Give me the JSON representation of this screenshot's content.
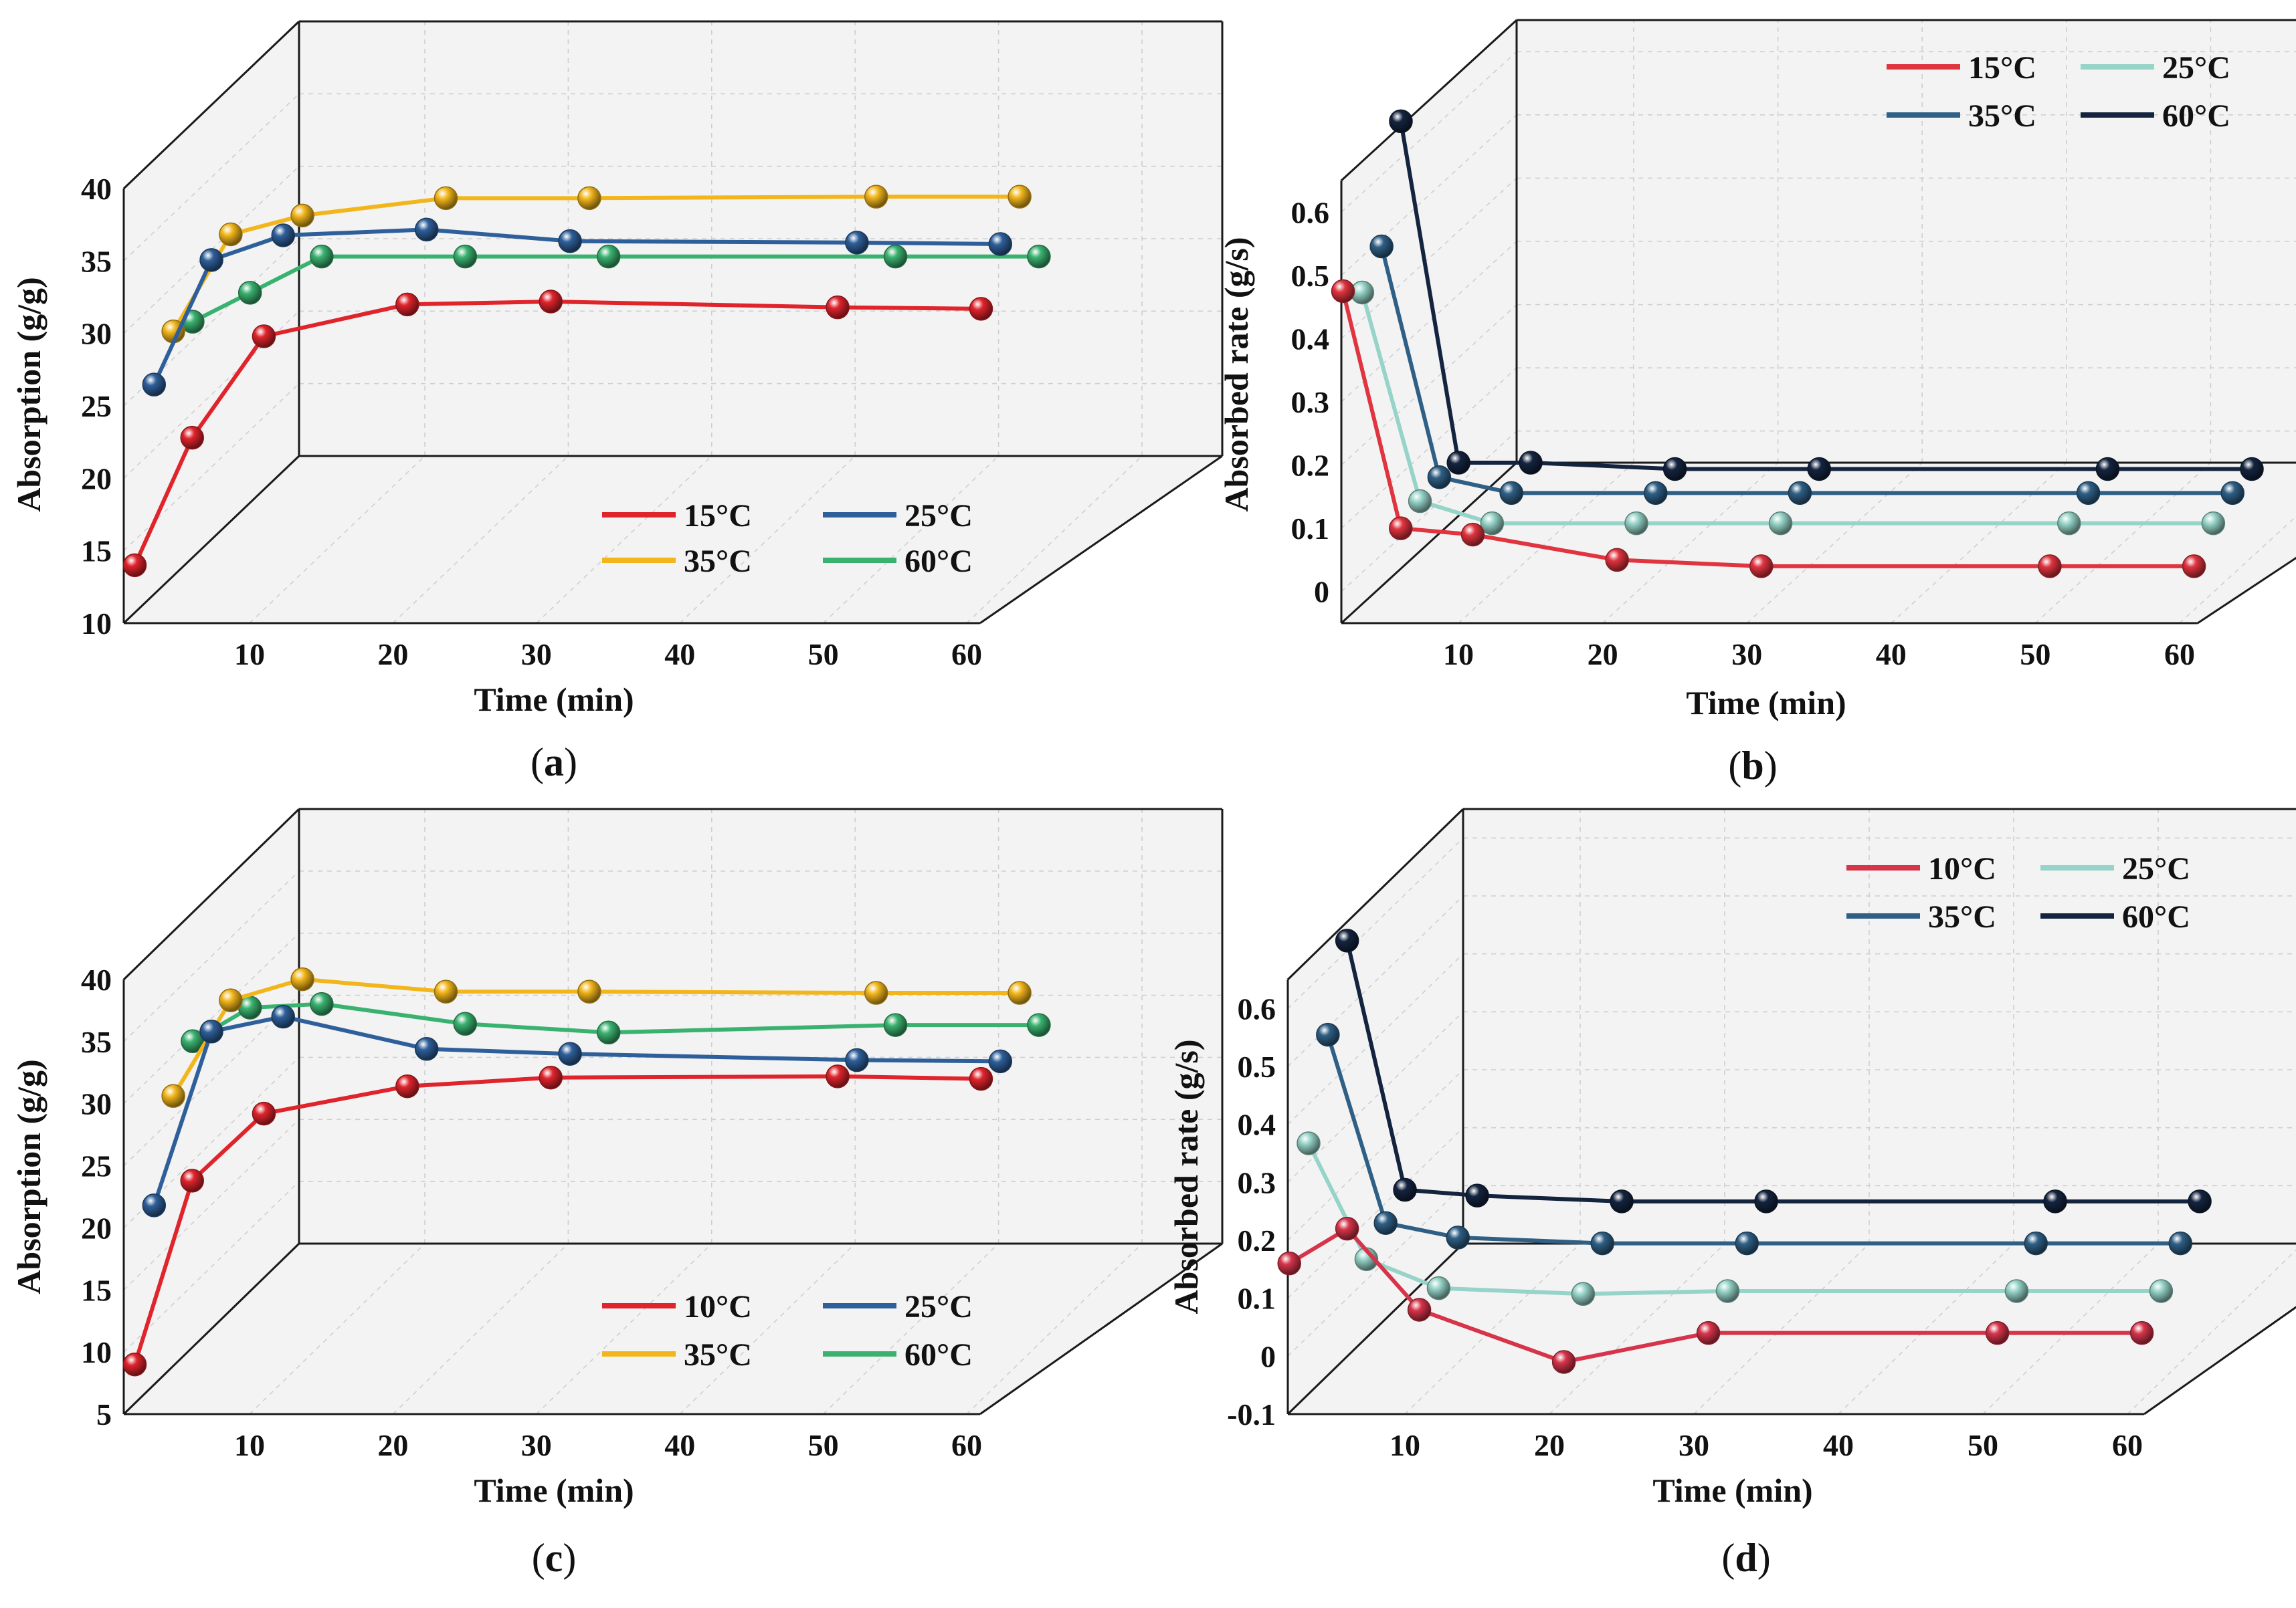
{
  "chart_data": [
    {
      "panel_label": "a",
      "type": "line",
      "projection": "3d",
      "title": "",
      "xlabel": "Time (min)",
      "ylabel": "Absorption (g/g)",
      "xlim": [
        1,
        61
      ],
      "ylim": [
        10,
        40
      ],
      "xticks": [
        10,
        20,
        30,
        40,
        50,
        60
      ],
      "yticks": [
        10,
        15,
        20,
        25,
        30,
        35,
        40
      ],
      "legend_position": "bottom-right",
      "series": [
        {
          "name": "15°C",
          "color": "#e0242c",
          "depth": 0,
          "x": [
            2,
            6,
            11,
            21,
            31,
            51,
            61
          ],
          "y": [
            14.0,
            22.8,
            29.8,
            32.0,
            32.2,
            31.8,
            31.7
          ]
        },
        {
          "name": "25°C",
          "color": "#2e5f9a",
          "depth": 1,
          "x": [
            2,
            6,
            11,
            21,
            31,
            51,
            61
          ],
          "y": [
            25.2,
            33.8,
            35.5,
            35.9,
            35.1,
            35.0,
            34.9
          ]
        },
        {
          "name": "35°C",
          "color": "#f2b61c",
          "depth": 2,
          "x": [
            2,
            6,
            11,
            21,
            31,
            51,
            61
          ],
          "y": [
            27.6,
            34.3,
            35.6,
            36.8,
            36.8,
            36.9,
            36.9
          ]
        },
        {
          "name": "60°C",
          "color": "#3ab26f",
          "depth": 3,
          "x": [
            2,
            6,
            11,
            21,
            31,
            51,
            61
          ],
          "y": [
            27.0,
            29.0,
            31.5,
            31.5,
            31.5,
            31.5,
            31.5
          ]
        }
      ]
    },
    {
      "panel_label": "b",
      "type": "line",
      "projection": "3d",
      "title": "",
      "xlabel": "Time (min)",
      "ylabel": "Absorbed rate (g/s)",
      "xlim": [
        1,
        61
      ],
      "ylim": [
        -0.05,
        0.65
      ],
      "xticks": [
        10,
        20,
        30,
        40,
        50,
        60
      ],
      "yticks": [
        0.0,
        0.1,
        0.2,
        0.3,
        0.4,
        0.5,
        0.6
      ],
      "legend_position": "top-right",
      "series": [
        {
          "name": "15°C",
          "color": "#e0343f",
          "depth": 0,
          "x": [
            2,
            6,
            11,
            21,
            31,
            51,
            61
          ],
          "y": [
            0.475,
            0.1,
            0.09,
            0.05,
            0.04,
            0.04,
            0.04
          ]
        },
        {
          "name": "25°C",
          "color": "#96d3c8",
          "depth": 1,
          "x": [
            2,
            6,
            11,
            21,
            31,
            51,
            61
          ],
          "y": [
            0.445,
            0.115,
            0.08,
            0.08,
            0.08,
            0.08,
            0.08
          ]
        },
        {
          "name": "35°C",
          "color": "#2f5f85",
          "depth": 2,
          "x": [
            2,
            6,
            11,
            21,
            31,
            51,
            61
          ],
          "y": [
            0.49,
            0.125,
            0.1,
            0.1,
            0.1,
            0.1,
            0.1
          ]
        },
        {
          "name": "60°C",
          "color": "#14243f",
          "depth": 3,
          "x": [
            2,
            6,
            11,
            21,
            31,
            51,
            61
          ],
          "y": [
            0.66,
            0.12,
            0.12,
            0.11,
            0.11,
            0.11,
            0.11
          ]
        }
      ]
    },
    {
      "panel_label": "c",
      "type": "line",
      "projection": "3d",
      "title": "",
      "xlabel": "Time (min)",
      "ylabel": "Absorption (g/g)",
      "xlim": [
        1,
        61
      ],
      "ylim": [
        5,
        40
      ],
      "xticks": [
        10,
        20,
        30,
        40,
        50,
        60
      ],
      "yticks": [
        5,
        10,
        15,
        20,
        25,
        30,
        35,
        40
      ],
      "legend_position": "bottom-right",
      "series": [
        {
          "name": "10°C",
          "color": "#e0242c",
          "depth": 0,
          "x": [
            2,
            6,
            11,
            21,
            31,
            51,
            61
          ],
          "y": [
            9.0,
            23.8,
            29.2,
            31.4,
            32.1,
            32.2,
            32.0
          ]
        },
        {
          "name": "25°C",
          "color": "#2e5f9a",
          "depth": 1,
          "x": [
            2,
            6,
            11,
            21,
            31,
            51,
            61
          ],
          "y": [
            20.3,
            34.3,
            35.5,
            32.9,
            32.5,
            32.0,
            31.9
          ]
        },
        {
          "name": "35°C",
          "color": "#f2b61c",
          "depth": 2,
          "x": [
            2,
            6,
            11,
            21,
            31,
            51,
            61
          ],
          "y": [
            27.6,
            35.3,
            37.0,
            36.0,
            36.0,
            35.9,
            35.9
          ]
        },
        {
          "name": "60°C",
          "color": "#3ab26f",
          "depth": 3,
          "x": [
            2,
            6,
            11,
            21,
            31,
            51,
            61
          ],
          "y": [
            30.5,
            33.2,
            33.5,
            31.9,
            31.2,
            31.8,
            31.8
          ]
        }
      ]
    },
    {
      "panel_label": "d",
      "type": "line",
      "projection": "3d",
      "title": "",
      "xlabel": "Time (min)",
      "ylabel": "Absorbed rate (g/s)",
      "xlim": [
        1,
        61
      ],
      "ylim": [
        -0.1,
        0.65
      ],
      "xticks": [
        10,
        20,
        30,
        40,
        50,
        60
      ],
      "yticks": [
        -0.1,
        0.0,
        0.1,
        0.2,
        0.3,
        0.4,
        0.5,
        0.6
      ],
      "legend_position": "top-right",
      "series": [
        {
          "name": "10°C",
          "color": "#d6344a",
          "depth": 0,
          "x": [
            2,
            6,
            11,
            21,
            31,
            51,
            61
          ],
          "y": [
            0.16,
            0.22,
            0.08,
            -0.01,
            0.04,
            0.04,
            0.04
          ]
        },
        {
          "name": "25°C",
          "color": "#96d3c8",
          "depth": 1,
          "x": [
            2,
            6,
            11,
            21,
            31,
            51,
            61
          ],
          "y": [
            0.335,
            0.135,
            0.085,
            0.075,
            0.08,
            0.08,
            0.08
          ]
        },
        {
          "name": "35°C",
          "color": "#2f5f85",
          "depth": 2,
          "x": [
            2,
            6,
            11,
            21,
            31,
            51,
            61
          ],
          "y": [
            0.49,
            0.165,
            0.14,
            0.13,
            0.13,
            0.13,
            0.13
          ]
        },
        {
          "name": "60°C",
          "color": "#14243f",
          "depth": 3,
          "x": [
            2,
            6,
            11,
            21,
            31,
            51,
            61
          ],
          "y": [
            0.62,
            0.19,
            0.18,
            0.17,
            0.17,
            0.17,
            0.17
          ]
        }
      ]
    }
  ]
}
